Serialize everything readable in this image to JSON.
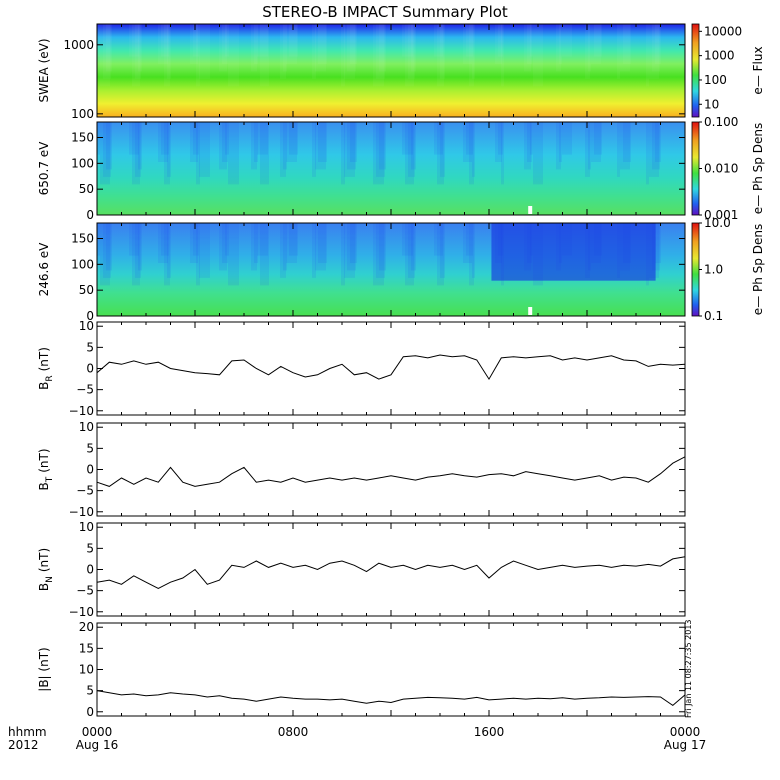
{
  "title": "STEREO-B IMPACT Summary Plot",
  "timestamp_vertical": "Fri Jan 11 08:27:35 2013",
  "xaxis": {
    "row_label_1": "hhmm",
    "row_label_2": "2012",
    "ticks": [
      "0000",
      "0800",
      "1600",
      "0000"
    ],
    "tick_hours": [
      0,
      8,
      16,
      24
    ],
    "date_labels": [
      "Aug 16",
      "Aug 17"
    ]
  },
  "chart_data": [
    {
      "type": "heatmap",
      "ylabel": "SWEA (eV)",
      "y_scale": "log",
      "ylim": [
        90,
        2000
      ],
      "yticks": [
        "1000",
        "100"
      ],
      "ytick_values": [
        1000,
        100
      ],
      "colorbar": {
        "label": "e— Flux",
        "scale": "log",
        "ticks": [
          "10000",
          "1000",
          "100",
          "10"
        ],
        "tick_values": [
          10000,
          1000,
          100,
          10
        ],
        "range": [
          3,
          20000
        ]
      },
      "bands_top_to_bottom": [
        "#2020e8",
        "#2cb8f0",
        "#40e8b0",
        "#80f060",
        "#48e020",
        "#a8f030",
        "#f0f030",
        "#f8b020"
      ]
    },
    {
      "type": "heatmap",
      "ylabel": "650.7 eV",
      "ylim": [
        0,
        180
      ],
      "yticks": [
        "150",
        "100",
        "50",
        "0"
      ],
      "ytick_values": [
        150,
        100,
        50,
        0
      ],
      "colorbar": {
        "label": "e— Ph Sp Dens",
        "scale": "log",
        "ticks": [
          "0.100",
          "0.010",
          "0.001"
        ],
        "tick_values": [
          0.1,
          0.01,
          0.001
        ],
        "range": [
          0.001,
          0.1
        ]
      }
    },
    {
      "type": "heatmap",
      "ylabel": "246.6 eV",
      "ylim": [
        0,
        180
      ],
      "yticks": [
        "150",
        "100",
        "50",
        "0"
      ],
      "ytick_values": [
        150,
        100,
        50,
        0
      ],
      "colorbar": {
        "label": "e— Ph Sp Dens",
        "scale": "log",
        "ticks": [
          "10.0",
          "1.0",
          "0.1"
        ],
        "tick_values": [
          10,
          1,
          0.1
        ],
        "range": [
          0.1,
          10
        ]
      }
    },
    {
      "type": "line",
      "ylabel_main": "B",
      "ylabel_sub": "R",
      "ylabel_unit": "(nT)",
      "ylim": [
        -11,
        11
      ],
      "yticks": [
        "10",
        "5",
        "0",
        "−5",
        "−10"
      ],
      "ytick_values": [
        10,
        5,
        0,
        -5,
        -10
      ],
      "x_hours": [
        0,
        0.5,
        1,
        1.5,
        2,
        2.5,
        3,
        3.5,
        4,
        4.5,
        5,
        5.5,
        6,
        6.5,
        7,
        7.5,
        8,
        8.5,
        9,
        9.5,
        10,
        10.5,
        11,
        11.5,
        12,
        12.5,
        13,
        13.5,
        14,
        14.5,
        15,
        15.5,
        16,
        16.5,
        17,
        17.5,
        18,
        18.5,
        19,
        19.5,
        20,
        20.5,
        21,
        21.5,
        22,
        22.5,
        23,
        23.5,
        24
      ],
      "values": [
        -1.0,
        1.5,
        1.0,
        1.8,
        1.0,
        1.5,
        0.0,
        -0.5,
        -1.0,
        -1.2,
        -1.5,
        1.8,
        2.0,
        0.0,
        -1.5,
        0.5,
        -1.0,
        -2.0,
        -1.5,
        0.0,
        1.0,
        -1.5,
        -1.0,
        -2.5,
        -1.5,
        2.8,
        3.0,
        2.5,
        3.2,
        2.8,
        3.0,
        2.0,
        -2.5,
        2.5,
        2.8,
        2.5,
        2.8,
        3.0,
        2.0,
        2.5,
        2.0,
        2.5,
        3.0,
        2.0,
        1.8,
        0.5,
        1.0,
        0.8,
        1.0
      ]
    },
    {
      "type": "line",
      "ylabel_main": "B",
      "ylabel_sub": "T",
      "ylabel_unit": "(nT)",
      "ylim": [
        -11,
        11
      ],
      "yticks": [
        "10",
        "5",
        "0",
        "−5",
        "−10"
      ],
      "ytick_values": [
        10,
        5,
        0,
        -5,
        -10
      ],
      "x_hours": [
        0,
        0.5,
        1,
        1.5,
        2,
        2.5,
        3,
        3.5,
        4,
        4.5,
        5,
        5.5,
        6,
        6.5,
        7,
        7.5,
        8,
        8.5,
        9,
        9.5,
        10,
        10.5,
        11,
        11.5,
        12,
        12.5,
        13,
        13.5,
        14,
        14.5,
        15,
        15.5,
        16,
        16.5,
        17,
        17.5,
        18,
        18.5,
        19,
        19.5,
        20,
        20.5,
        21,
        21.5,
        22,
        22.5,
        23,
        23.5,
        24
      ],
      "values": [
        -3.0,
        -4.0,
        -2.0,
        -3.5,
        -2.0,
        -3.0,
        0.5,
        -3.0,
        -4.0,
        -3.5,
        -3.0,
        -1.0,
        0.5,
        -3.0,
        -2.5,
        -3.0,
        -2.0,
        -3.0,
        -2.5,
        -2.0,
        -2.5,
        -2.0,
        -2.5,
        -2.0,
        -1.5,
        -2.0,
        -2.5,
        -1.8,
        -1.5,
        -1.0,
        -1.5,
        -1.8,
        -1.2,
        -1.0,
        -1.5,
        -0.5,
        -1.0,
        -1.5,
        -2.0,
        -2.5,
        -2.0,
        -1.5,
        -2.5,
        -1.8,
        -2.0,
        -3.0,
        -1.0,
        1.5,
        3.0
      ]
    },
    {
      "type": "line",
      "ylabel_main": "B",
      "ylabel_sub": "N",
      "ylabel_unit": "(nT)",
      "ylim": [
        -11,
        11
      ],
      "yticks": [
        "10",
        "5",
        "0",
        "−5",
        "−10"
      ],
      "ytick_values": [
        10,
        5,
        0,
        -5,
        -10
      ],
      "x_hours": [
        0,
        0.5,
        1,
        1.5,
        2,
        2.5,
        3,
        3.5,
        4,
        4.5,
        5,
        5.5,
        6,
        6.5,
        7,
        7.5,
        8,
        8.5,
        9,
        9.5,
        10,
        10.5,
        11,
        11.5,
        12,
        12.5,
        13,
        13.5,
        14,
        14.5,
        15,
        15.5,
        16,
        16.5,
        17,
        17.5,
        18,
        18.5,
        19,
        19.5,
        20,
        20.5,
        21,
        21.5,
        22,
        22.5,
        23,
        23.5,
        24
      ],
      "values": [
        -3.0,
        -2.5,
        -3.5,
        -1.5,
        -3.0,
        -4.5,
        -3.0,
        -2.0,
        0.0,
        -3.5,
        -2.5,
        1.0,
        0.5,
        2.0,
        0.5,
        1.5,
        0.5,
        1.0,
        0.0,
        1.5,
        2.0,
        1.0,
        -0.5,
        1.5,
        0.5,
        1.0,
        0.0,
        1.0,
        0.5,
        1.0,
        0.0,
        1.0,
        -2.0,
        0.5,
        2.0,
        1.0,
        0.0,
        0.5,
        1.0,
        0.5,
        0.8,
        1.0,
        0.5,
        1.0,
        0.8,
        1.2,
        0.8,
        2.5,
        3.0
      ]
    },
    {
      "type": "line",
      "ylabel": "|B| (nT)",
      "ylim": [
        -1,
        21
      ],
      "yticks": [
        "20",
        "15",
        "10",
        "5",
        "0"
      ],
      "ytick_values": [
        20,
        15,
        10,
        5,
        0
      ],
      "x_hours": [
        0,
        0.5,
        1,
        1.5,
        2,
        2.5,
        3,
        3.5,
        4,
        4.5,
        5,
        5.5,
        6,
        6.5,
        7,
        7.5,
        8,
        8.5,
        9,
        9.5,
        10,
        10.5,
        11,
        11.5,
        12,
        12.5,
        13,
        13.5,
        14,
        14.5,
        15,
        15.5,
        16,
        16.5,
        17,
        17.5,
        18,
        18.5,
        19,
        19.5,
        20,
        20.5,
        21,
        21.5,
        22,
        22.5,
        23,
        23.5,
        24
      ],
      "values": [
        5.0,
        4.5,
        4.0,
        4.2,
        3.8,
        4.0,
        4.5,
        4.2,
        4.0,
        3.5,
        3.8,
        3.2,
        3.0,
        2.5,
        3.0,
        3.5,
        3.2,
        3.0,
        3.0,
        2.8,
        3.0,
        2.5,
        2.0,
        2.5,
        2.2,
        3.0,
        3.2,
        3.4,
        3.3,
        3.2,
        3.0,
        3.4,
        2.8,
        3.0,
        3.2,
        3.0,
        3.2,
        3.1,
        3.3,
        3.0,
        3.2,
        3.3,
        3.5,
        3.4,
        3.5,
        3.6,
        3.5,
        1.5,
        4.0
      ]
    }
  ]
}
